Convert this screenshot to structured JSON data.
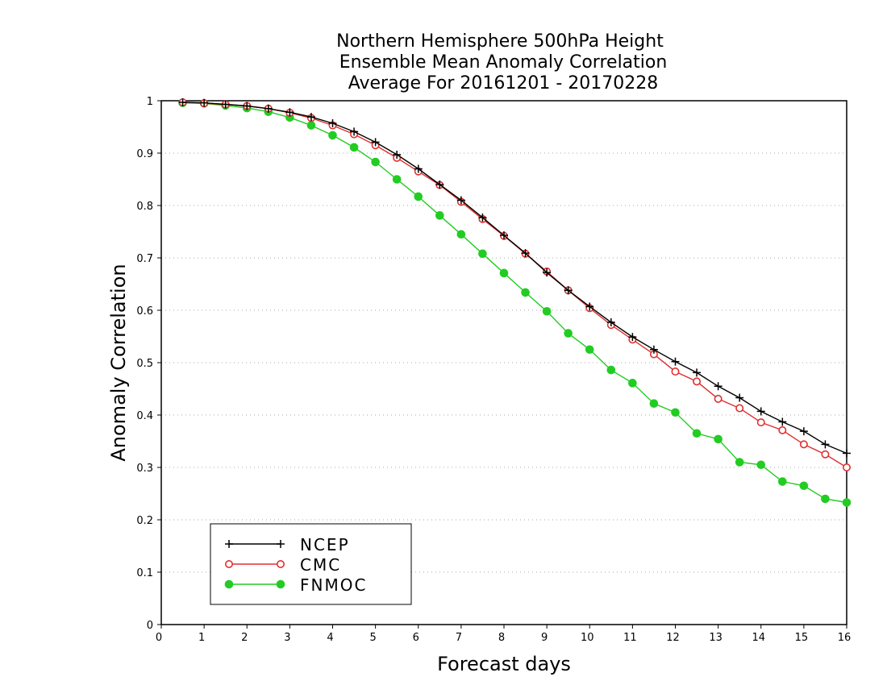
{
  "chart_data": {
    "type": "line",
    "title_lines": [
      "Northern Hemisphere 500hPa Height",
      "Ensemble Mean Anomaly Correlation",
      "Average For 20161201 - 20170228"
    ],
    "xlabel": "Forecast days",
    "ylabel": "Anomaly Correlation",
    "xlim": [
      0,
      16
    ],
    "ylim": [
      0,
      1
    ],
    "x_ticks": [
      "0",
      "1",
      "2",
      "3",
      "4",
      "5",
      "6",
      "7",
      "8",
      "9",
      "10",
      "11",
      "12",
      "13",
      "14",
      "15",
      "16"
    ],
    "y_ticks": [
      "0",
      "0.1",
      "0.2",
      "0.3",
      "0.4",
      "0.5",
      "0.6",
      "0.7",
      "0.8",
      "0.9",
      "1"
    ],
    "grid": "horizontal dotted",
    "legend_position": "bottom-left",
    "x": [
      0.5,
      1,
      1.5,
      2,
      2.5,
      3,
      3.5,
      4,
      4.5,
      5,
      5.5,
      6,
      6.5,
      7,
      7.5,
      8,
      8.5,
      9,
      9.5,
      10,
      10.5,
      11,
      11.5,
      12,
      12.5,
      13,
      13.5,
      14,
      14.5,
      15,
      15.5,
      16
    ],
    "series": [
      {
        "name": "NCEP",
        "color": "#000000",
        "marker": "plus",
        "values": [
          0.997,
          0.996,
          0.993,
          0.99,
          0.985,
          0.978,
          0.969,
          0.957,
          0.941,
          0.921,
          0.897,
          0.87,
          0.84,
          0.81,
          0.777,
          0.743,
          0.709,
          0.672,
          0.638,
          0.607,
          0.577,
          0.549,
          0.525,
          0.502,
          0.481,
          0.455,
          0.433,
          0.407,
          0.387,
          0.369,
          0.344,
          0.327
        ]
      },
      {
        "name": "CMC",
        "color": "#e03030",
        "marker": "open-circle",
        "values": [
          0.997,
          0.995,
          0.993,
          0.99,
          0.985,
          0.977,
          0.967,
          0.953,
          0.936,
          0.915,
          0.891,
          0.865,
          0.839,
          0.807,
          0.774,
          0.742,
          0.708,
          0.674,
          0.638,
          0.604,
          0.572,
          0.544,
          0.516,
          0.483,
          0.464,
          0.431,
          0.413,
          0.386,
          0.371,
          0.344,
          0.325,
          0.3
        ]
      },
      {
        "name": "FNMOC",
        "color": "#22cc22",
        "marker": "filled-circle",
        "values": [
          0.996,
          0.995,
          0.991,
          0.986,
          0.979,
          0.968,
          0.953,
          0.934,
          0.911,
          0.883,
          0.85,
          0.817,
          0.781,
          0.745,
          0.708,
          0.671,
          0.634,
          0.598,
          0.556,
          0.525,
          0.486,
          0.461,
          0.422,
          0.405,
          0.365,
          0.354,
          0.31,
          0.305,
          0.273,
          0.265,
          0.24,
          0.233
        ]
      }
    ]
  }
}
